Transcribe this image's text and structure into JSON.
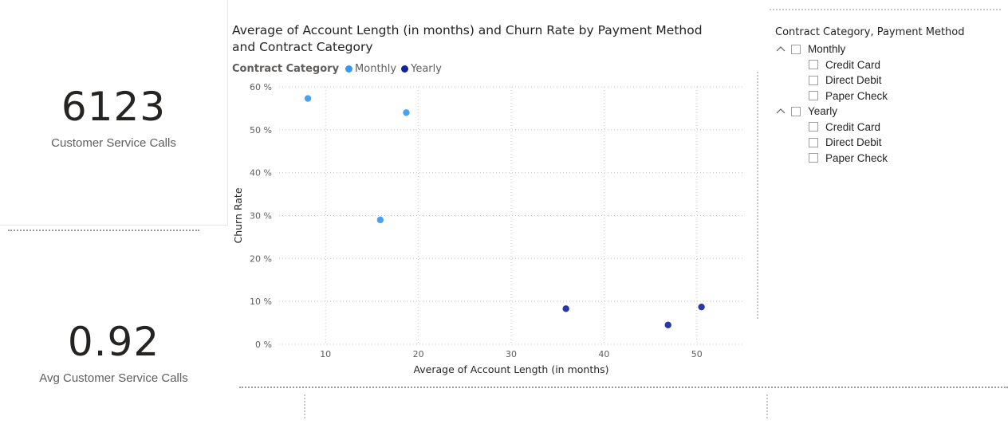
{
  "cards": [
    {
      "value": "6123",
      "label": "Customer Service Calls"
    },
    {
      "value": "0.92",
      "label": "Avg Customer Service Calls"
    }
  ],
  "chart": {
    "title": "Average of Account Length (in months) and Churn Rate by Payment Method and Contract Category",
    "legend_title": "Contract Category"
  },
  "chart_data": {
    "type": "scatter",
    "title": "Average of Account Length (in months) and Churn Rate by Payment Method and Contract Category",
    "xlabel": "Average of Account Length (in months)",
    "ylabel": "Churn Rate",
    "xlim": [
      5,
      55
    ],
    "ylim": [
      0,
      60
    ],
    "x_ticks": [
      10,
      20,
      30,
      40,
      50
    ],
    "y_ticks": [
      0,
      10,
      20,
      30,
      40,
      50,
      60
    ],
    "y_tick_labels": [
      "0 %",
      "10 %",
      "20 %",
      "30 %",
      "40 %",
      "50 %",
      "60 %"
    ],
    "grid": true,
    "legend_position": "top-left",
    "series": [
      {
        "name": "Monthly",
        "color": "#3599f2",
        "points": [
          {
            "x": 8.1,
            "y": 57.3
          },
          {
            "x": 18.7,
            "y": 54.0
          },
          {
            "x": 15.9,
            "y": 29.0
          }
        ]
      },
      {
        "name": "Yearly",
        "color": "#12239e",
        "points": [
          {
            "x": 35.9,
            "y": 8.3
          },
          {
            "x": 46.9,
            "y": 4.5
          },
          {
            "x": 50.5,
            "y": 8.7
          }
        ]
      }
    ]
  },
  "slicer": {
    "title": "Contract Category, Payment Method",
    "groups": [
      {
        "label": "Monthly",
        "children": [
          "Credit Card",
          "Direct Debit",
          "Paper Check"
        ]
      },
      {
        "label": "Yearly",
        "children": [
          "Credit Card",
          "Direct Debit",
          "Paper Check"
        ]
      }
    ]
  }
}
